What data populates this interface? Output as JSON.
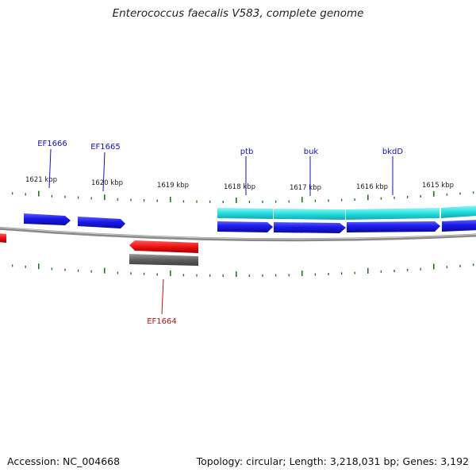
{
  "title": "Enterococcus faecalis V583, complete genome",
  "footer": {
    "accession": "Accession: NC_004668",
    "topology": "Topology: circular; Length: 3,218,031 bp; Genes: 3,192"
  },
  "colors": {
    "forward_gene": "#1a1aee",
    "reverse_gene": "#ee1111",
    "reverse_shadow": "#6e6e6e",
    "operon": "#22dddd",
    "backbone": "#8a8a8a",
    "ticks": "#227722",
    "label_forward": "#1111bb",
    "label_reverse": "#bb1111"
  },
  "scale_labels": [
    {
      "id": "1621",
      "text": "1621 kbp"
    },
    {
      "id": "1620",
      "text": "1620 kbp"
    },
    {
      "id": "1619",
      "text": "1619 kbp"
    },
    {
      "id": "1618",
      "text": "1618 kbp"
    },
    {
      "id": "1617",
      "text": "1617 kbp"
    },
    {
      "id": "1616",
      "text": "1616 kbp"
    },
    {
      "id": "1615",
      "text": "1615 kbp"
    }
  ],
  "genes": [
    {
      "id": "EF1666",
      "label": "EF1666",
      "strand": "forward"
    },
    {
      "id": "EF1665",
      "label": "EF1665",
      "strand": "forward"
    },
    {
      "id": "ptb",
      "label": "ptb",
      "strand": "forward"
    },
    {
      "id": "buk",
      "label": "buk",
      "strand": "forward"
    },
    {
      "id": "bkdD",
      "label": "bkdD",
      "strand": "forward"
    },
    {
      "id": "EF1664",
      "label": "EF1664",
      "strand": "reverse"
    }
  ]
}
